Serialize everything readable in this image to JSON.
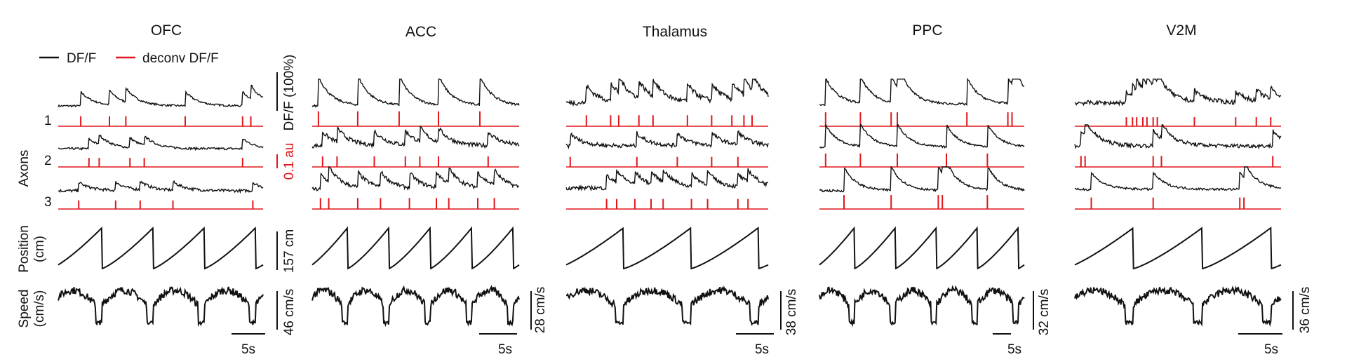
{
  "chart_data": {
    "type": "line",
    "legend": {
      "entries": [
        {
          "name": "DF/F",
          "color": "#111111"
        },
        {
          "name": "deconv DF/F",
          "color": "#e0161b"
        }
      ],
      "placement": "top-left"
    },
    "row_labels": {
      "axons": "Axons",
      "axon_ids": [
        "1",
        "2",
        "3"
      ],
      "position": [
        "Position",
        "(cm)"
      ],
      "speed": [
        "Speed",
        "(cm/s)"
      ]
    },
    "dff_scale": {
      "label": "DF/F (100%)"
    },
    "deconv_scale": {
      "label": "0.1 au"
    },
    "time_scale": {
      "label": "5s"
    },
    "panels": [
      {
        "title": "OFC",
        "position_scale": "157 cm",
        "speed_scale": "46 cm/s",
        "laps": 4,
        "axons": [
          {
            "base": 0.2,
            "peaks": [
              0.11,
              0.25,
              0.33,
              0.62,
              0.9,
              0.94
            ],
            "amp": 0.45,
            "noise": 0.06
          },
          {
            "base": 0.2,
            "peaks": [
              0.15,
              0.2,
              0.35,
              0.42,
              0.9
            ],
            "amp": 0.35,
            "noise": 0.08
          },
          {
            "base": 0.2,
            "peaks": [
              0.1,
              0.28,
              0.4,
              0.56,
              0.95
            ],
            "amp": 0.3,
            "noise": 0.1
          }
        ]
      },
      {
        "title": "ACC",
        "position_scale": "",
        "speed_scale": "28 cm/s",
        "laps": 5,
        "axons": [
          {
            "base": 0.2,
            "peaks": [
              0.03,
              0.22,
              0.42,
              0.61,
              0.81
            ],
            "amp": 0.95,
            "noise": 0.07
          },
          {
            "base": 0.3,
            "peaks": [
              0.05,
              0.12,
              0.3,
              0.45,
              0.52,
              0.61,
              0.85
            ],
            "amp": 0.5,
            "noise": 0.15
          },
          {
            "base": 0.25,
            "peaks": [
              0.04,
              0.08,
              0.22,
              0.33,
              0.47,
              0.6,
              0.66,
              0.8,
              0.88
            ],
            "amp": 0.55,
            "noise": 0.14
          }
        ]
      },
      {
        "title": "Thalamus",
        "position_scale": "",
        "speed_scale": "38 cm/s",
        "laps": 3,
        "axons": [
          {
            "base": 0.3,
            "peaks": [
              0.1,
              0.22,
              0.26,
              0.36,
              0.43,
              0.6,
              0.72,
              0.82,
              0.88,
              0.92
            ],
            "amp": 0.55,
            "noise": 0.16
          },
          {
            "base": 0.3,
            "peaks": [
              0.02,
              0.35,
              0.55,
              0.72,
              0.85
            ],
            "amp": 0.45,
            "noise": 0.14
          },
          {
            "base": 0.3,
            "peaks": [
              0.2,
              0.25,
              0.34,
              0.42,
              0.48,
              0.62,
              0.7,
              0.85,
              0.9
            ],
            "amp": 0.45,
            "noise": 0.14
          }
        ]
      },
      {
        "title": "PPC",
        "position_scale": "",
        "speed_scale": "32 cm/s",
        "laps": 5,
        "axons": [
          {
            "base": 0.25,
            "peaks": [
              0.03,
              0.2,
              0.35,
              0.38,
              0.72,
              0.92,
              0.94
            ],
            "amp": 0.85,
            "noise": 0.07
          },
          {
            "base": 0.25,
            "peaks": [
              0.03,
              0.2,
              0.38,
              0.62,
              0.82
            ],
            "amp": 0.8,
            "noise": 0.07
          },
          {
            "base": 0.2,
            "peaks": [
              0.12,
              0.35,
              0.58,
              0.6,
              0.82
            ],
            "amp": 0.85,
            "noise": 0.08
          }
        ]
      },
      {
        "title": "V2M",
        "position_scale": "",
        "speed_scale": "36 cm/s",
        "laps": 3,
        "axons": [
          {
            "base": 0.3,
            "peaks": [
              0.25,
              0.28,
              0.3,
              0.33,
              0.35,
              0.38,
              0.4,
              0.58,
              0.78,
              0.88,
              0.95
            ],
            "amp": 0.35,
            "noise": 0.14
          },
          {
            "base": 0.3,
            "peaks": [
              0.03,
              0.05,
              0.38,
              0.42,
              0.96
            ],
            "amp": 0.55,
            "noise": 0.14
          },
          {
            "base": 0.25,
            "peaks": [
              0.08,
              0.38,
              0.8,
              0.82
            ],
            "amp": 0.6,
            "noise": 0.08
          }
        ]
      }
    ]
  }
}
